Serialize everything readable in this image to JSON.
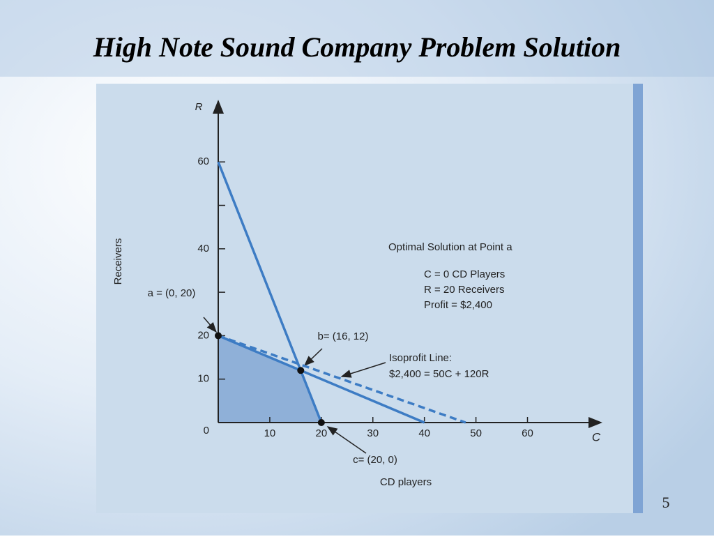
{
  "chart_data": {
    "type": "line",
    "title": "High Note Sound Company Problem Solution",
    "x_label": "CD players",
    "y_label": "Receivers",
    "x_axis_symbol": "C",
    "y_axis_symbol": "R",
    "xlim": [
      0,
      74
    ],
    "ylim": [
      0,
      74
    ],
    "xticks": [
      10,
      20,
      30,
      40,
      50,
      60
    ],
    "yticks": [
      0,
      10,
      20,
      40,
      60
    ],
    "minor_yticks": [
      30,
      50
    ],
    "region": {
      "x": [
        0,
        0,
        16,
        20
      ],
      "values": [
        0,
        20,
        12,
        0
      ],
      "color": "#8fb0d8"
    },
    "series": [
      {
        "x": [
          0,
          20
        ],
        "values": [
          60,
          0
        ],
        "color": "#3d7cc4",
        "dashed": false
      },
      {
        "x": [
          0,
          40
        ],
        "values": [
          20,
          0
        ],
        "color": "#3d7cc4",
        "dashed": false
      },
      {
        "x": [
          0,
          48
        ],
        "values": [
          20,
          0
        ],
        "color": "#3d7cc4",
        "dashed": true
      }
    ],
    "points": [
      {
        "label": "a = (0, 20)",
        "x": 0,
        "y": 20
      },
      {
        "label": "b= (16, 12)",
        "x": 16,
        "y": 12
      },
      {
        "label": "c= (20, 0)",
        "x": 20,
        "y": 0
      }
    ],
    "annotations": [
      "Optimal Solution at Point a",
      "C = 0 CD Players",
      "R = 20 Receivers",
      "Profit = $2,400",
      "Isoprofit Line:",
      "$2,400 = 50C + 120R"
    ]
  },
  "page_number": 5
}
